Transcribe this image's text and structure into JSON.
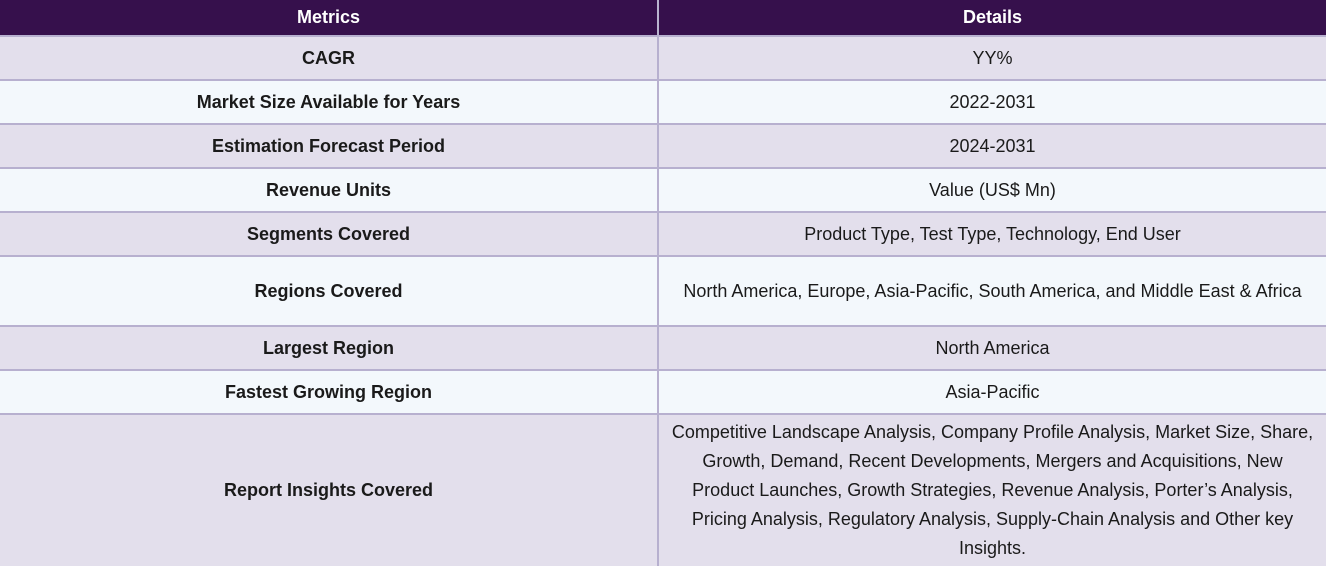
{
  "table": {
    "headers": {
      "metric": "Metrics",
      "details": "Details"
    },
    "rows": [
      {
        "metric": "CAGR",
        "details": "YY%"
      },
      {
        "metric": "Market Size Available for Years",
        "details": "2022-2031"
      },
      {
        "metric": "Estimation Forecast Period",
        "details": "2024-2031"
      },
      {
        "metric": "Revenue Units",
        "details": "Value (US$ Mn)"
      },
      {
        "metric": "Segments Covered",
        "details": "Product Type, Test Type, Technology, End User"
      },
      {
        "metric": "Regions Covered",
        "details": "North America, Europe, Asia-Pacific, South America, and Middle East & Africa"
      },
      {
        "metric": "Largest Region",
        "details": "North America"
      },
      {
        "metric": "Fastest Growing Region",
        "details": "Asia-Pacific"
      },
      {
        "metric": "Report Insights Covered",
        "details": "Competitive Landscape Analysis, Company Profile Analysis, Market Size, Share, Growth, Demand, Recent Developments, Mergers and Acquisitions, New Product Launches, Growth Strategies, Revenue Analysis, Porter’s Analysis, Pricing Analysis, Regulatory Analysis, Supply-Chain Analysis and Other key Insights."
      }
    ]
  },
  "colors": {
    "header_bg": "#36104c",
    "row_odd_bg": "#e3dfec",
    "row_even_bg": "#f3f8fc",
    "border": "#b7b0cf"
  }
}
